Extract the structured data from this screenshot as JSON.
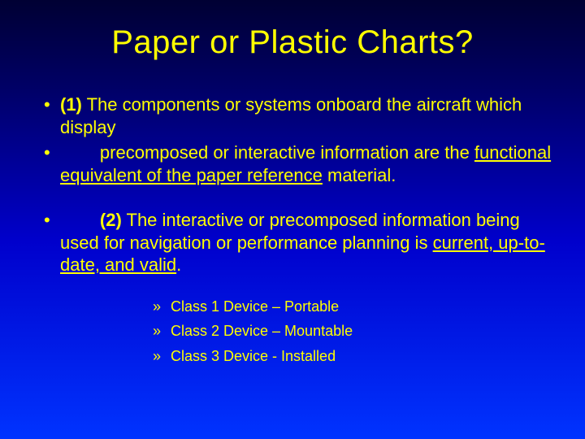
{
  "background": {
    "gradient_top": "#000033",
    "gradient_upper": "#000066",
    "gradient_mid": "#0000cc",
    "gradient_bottom": "#0033ff"
  },
  "text_color": "#ffff00",
  "title": {
    "text": "Paper or Plastic Charts?",
    "fontsize": 40
  },
  "body_fontsize": 22,
  "sub_fontsize": 18,
  "bullets": {
    "b1_prefix": "(1)",
    "b1_text": " The components or systems onboard the aircraft which display",
    "b2_indent": "        ",
    "b2_plain1": "precomposed or interactive information are the ",
    "b2_under": "functional equivalent of the paper reference",
    "b2_plain2": " material.",
    "b3_indent": "        ",
    "b3_prefix": "(2)",
    "b3_plain1": " The interactive or precomposed information being used for navigation or performance planning is ",
    "b3_under": "current, up-to-date, and valid",
    "b3_plain2": "."
  },
  "subbullets": {
    "s1": "Class 1 Device – Portable",
    "s2": "Class 2 Device – Mountable",
    "s3": "Class 3 Device - Installed"
  }
}
